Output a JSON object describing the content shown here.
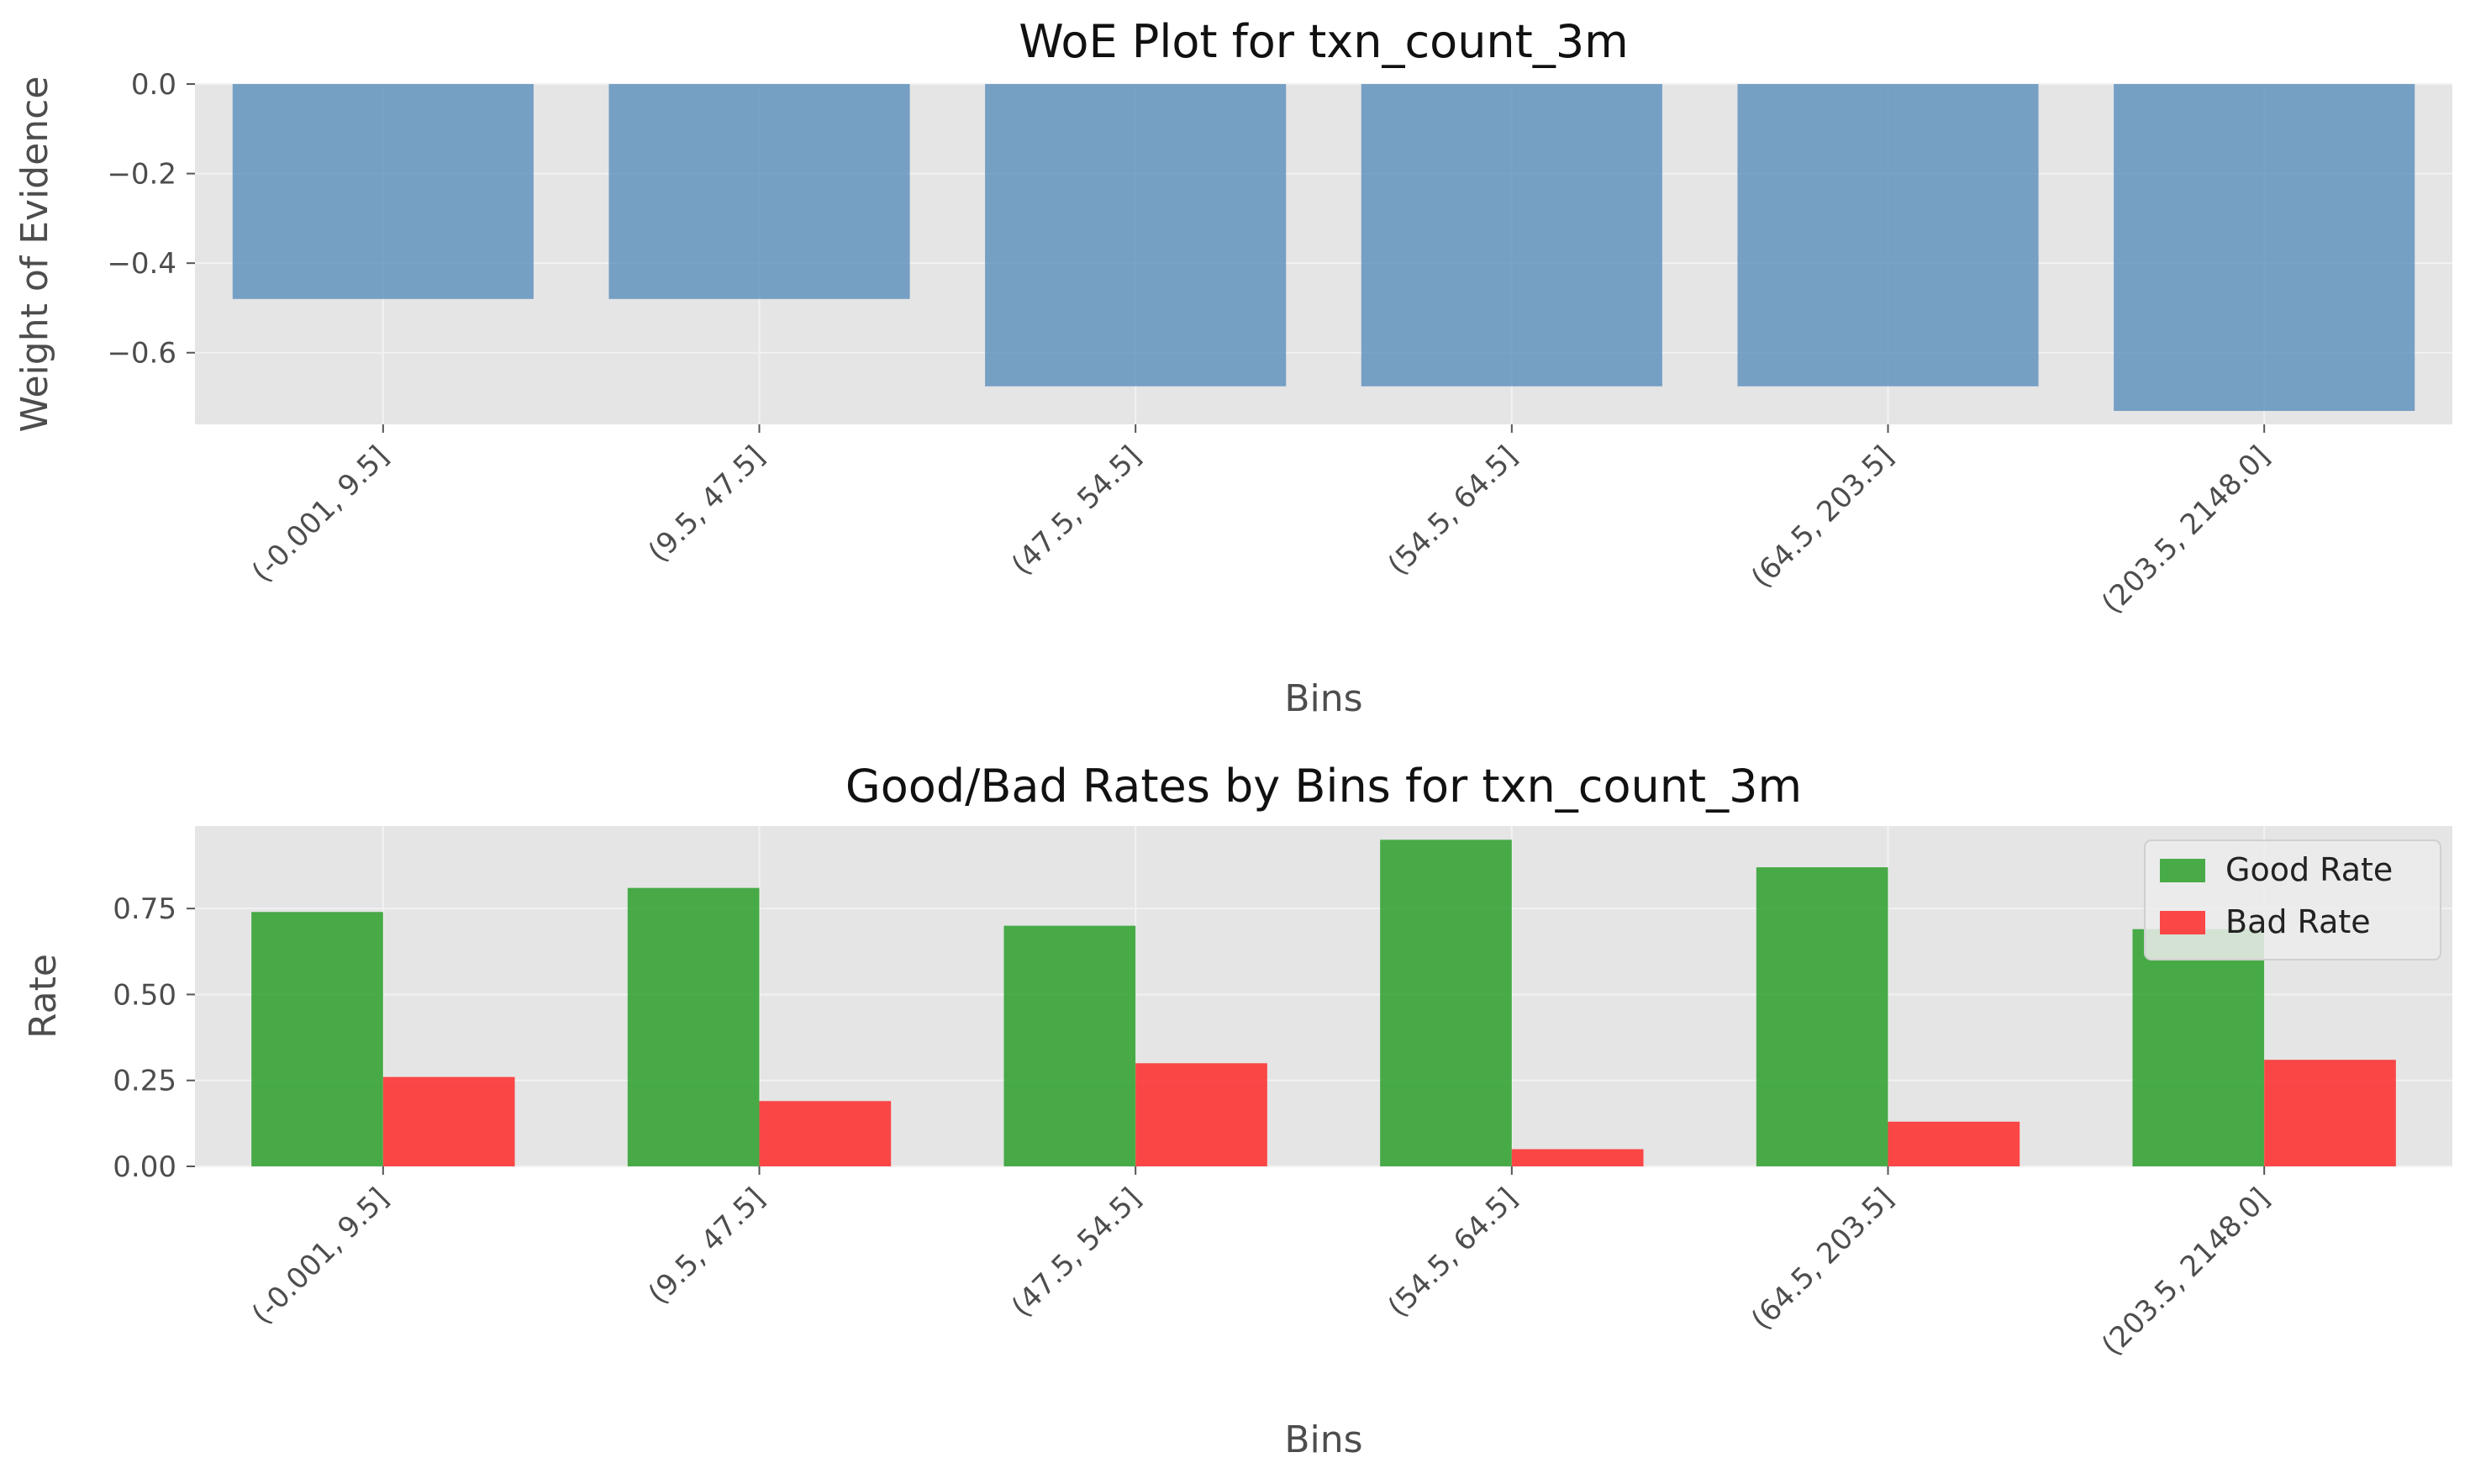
{
  "chart_data": [
    {
      "type": "bar",
      "title": "WoE Plot for txn_count_3m",
      "xlabel": "Bins",
      "ylabel": "Weight of Evidence",
      "categories": [
        "(-0.001, 9.5]",
        "(9.5, 47.5]",
        "(47.5, 54.5]",
        "(54.5, 64.5]",
        "(64.5, 203.5]",
        "(203.5, 2148.0]"
      ],
      "series": [
        {
          "values": [
            -0.48,
            -0.48,
            -0.675,
            -0.675,
            -0.675,
            -0.73
          ]
        }
      ],
      "ylim": [
        -0.76,
        0.0
      ],
      "yticks": [
        "0.0",
        "−0.2",
        "−0.4",
        "−0.6"
      ],
      "ytick_values": [
        0.0,
        -0.2,
        -0.4,
        -0.6
      ],
      "grid": true,
      "colors": {
        "bar": "#5a8dbb",
        "axes_bg": "#e5e5e5",
        "grid": "#f2f2f2"
      }
    },
    {
      "type": "bar",
      "title": "Good/Bad Rates by Bins for txn_count_3m",
      "xlabel": "Bins",
      "ylabel": "Rate",
      "categories": [
        "(-0.001, 9.5]",
        "(9.5, 47.5]",
        "(47.5, 54.5]",
        "(54.5, 64.5]",
        "(64.5, 203.5]",
        "(203.5, 2148.0]"
      ],
      "series": [
        {
          "name": "Good Rate",
          "values": [
            0.74,
            0.81,
            0.7,
            0.95,
            0.87,
            0.69
          ],
          "color": "#2ca02c"
        },
        {
          "name": "Bad Rate",
          "values": [
            0.26,
            0.19,
            0.3,
            0.05,
            0.13,
            0.31
          ],
          "color": "#ff2a2a"
        }
      ],
      "ylim": [
        0.0,
        0.99
      ],
      "yticks": [
        "0.00",
        "0.25",
        "0.50",
        "0.75"
      ],
      "ytick_values": [
        0.0,
        0.25,
        0.5,
        0.75
      ],
      "grid": true,
      "legend": "top-right",
      "colors": {
        "axes_bg": "#e5e5e5",
        "grid": "#f2f2f2"
      }
    }
  ]
}
